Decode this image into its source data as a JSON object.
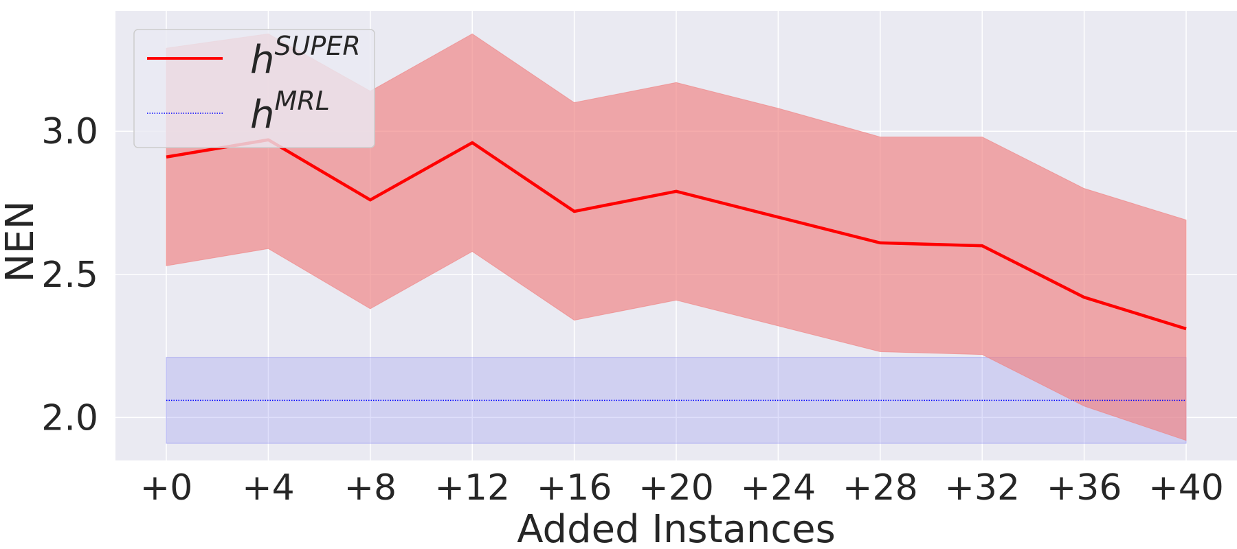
{
  "chart_data": {
    "type": "line",
    "xlabel": "Added Instances",
    "ylabel": "NEN",
    "categories": [
      "+0",
      "+4",
      "+8",
      "+12",
      "+16",
      "+20",
      "+24",
      "+28",
      "+32",
      "+36",
      "+40"
    ],
    "ylim": [
      1.85,
      3.42
    ],
    "yticks": [
      2.0,
      2.5,
      3.0
    ],
    "ytick_labels": [
      "2.0",
      "2.5",
      "3.0"
    ],
    "grid": true,
    "legend_position": "top-left",
    "series": [
      {
        "name_base": "h",
        "name_sup": "SUPER",
        "color": "#ff0000",
        "line_style": "solid",
        "values": [
          2.91,
          2.97,
          2.76,
          2.96,
          2.72,
          2.79,
          2.7,
          2.61,
          2.6,
          2.42,
          2.31
        ],
        "band_upper": [
          3.29,
          3.34,
          3.14,
          3.34,
          3.1,
          3.17,
          3.08,
          2.98,
          2.98,
          2.8,
          2.69
        ],
        "band_lower": [
          2.53,
          2.59,
          2.38,
          2.58,
          2.34,
          2.41,
          2.32,
          2.23,
          2.22,
          2.04,
          1.92
        ]
      },
      {
        "name_base": "h",
        "name_sup": "MRL",
        "color": "#0000ff",
        "line_style": "dotted",
        "values": [
          2.06,
          2.06,
          2.06,
          2.06,
          2.06,
          2.06,
          2.06,
          2.06,
          2.06,
          2.06,
          2.06
        ],
        "band_upper": [
          2.21,
          2.21,
          2.21,
          2.21,
          2.21,
          2.21,
          2.21,
          2.21,
          2.21,
          2.21,
          2.21
        ],
        "band_lower": [
          1.91,
          1.91,
          1.91,
          1.91,
          1.91,
          1.91,
          1.91,
          1.91,
          1.91,
          1.91,
          1.91
        ]
      }
    ],
    "colors": {
      "plot_background": "#eaeaf2",
      "grid": "#ffffff",
      "super_band": "#f08080",
      "mrl_band": "#8c8cf0"
    }
  }
}
